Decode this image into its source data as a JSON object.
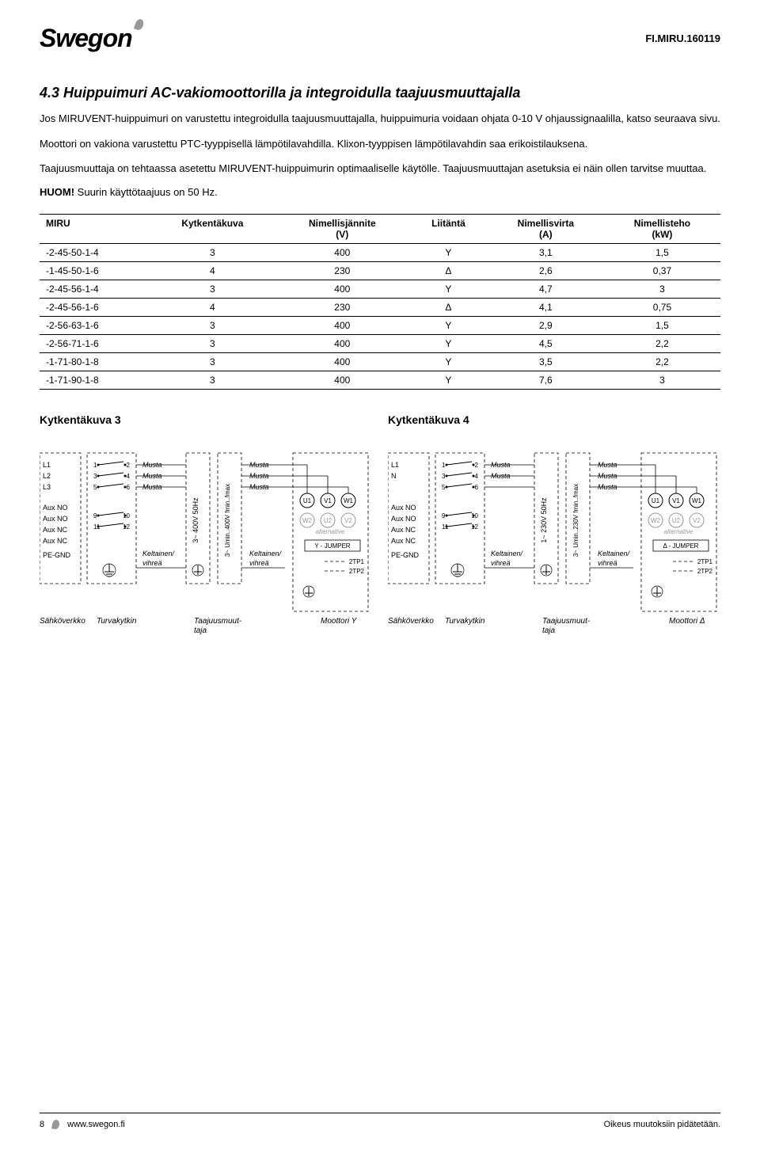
{
  "header": {
    "logo_text": "Swegon",
    "doc_id": "FI.MIRU.160119"
  },
  "section": {
    "title": "4.3 Huippuimuri AC-vakiomoottorilla ja integroidulla taajuusmuuttajalla",
    "p1": "Jos MIRUVENT-huippuimuri on varustettu integroidulla taajuusmuuttajalla, huippuimuria voidaan ohjata 0-10 V ohjaussignaalilla, katso seuraava sivu.",
    "p2": "Moottori on vakiona varustettu PTC-tyyppisellä lämpötilavahdilla. Klixon-tyyppisen lämpötilavahdin saa erikoistilauksena.",
    "p3": "Taajuusmuuttaja on tehtaassa asetettu MIRUVENT-huippuimurin optimaaliselle käytölle. Taajuusmuuttajan asetuksia ei näin ollen tarvitse muuttaa.",
    "huom_label": "HUOM!",
    "huom_text": "Suurin käyttötaajuus on 50 Hz."
  },
  "table": {
    "columns": [
      {
        "head": "MIRU",
        "sub": ""
      },
      {
        "head": "Kytkentäkuva",
        "sub": ""
      },
      {
        "head": "Nimellisjännite",
        "sub": "(V)"
      },
      {
        "head": "Liitäntä",
        "sub": ""
      },
      {
        "head": "Nimellisvirta",
        "sub": "(A)"
      },
      {
        "head": "Nimellisteho",
        "sub": "(kW)"
      }
    ],
    "rows": [
      [
        "-2-45-50-1-4",
        "3",
        "400",
        "Y",
        "3,1",
        "1,5"
      ],
      [
        "-1-45-50-1-6",
        "4",
        "230",
        "Δ",
        "2,6",
        "0,37"
      ],
      [
        "-2-45-56-1-4",
        "3",
        "400",
        "Y",
        "4,7",
        "3"
      ],
      [
        "-2-45-56-1-6",
        "4",
        "230",
        "Δ",
        "4,1",
        "0,75"
      ],
      [
        "-2-56-63-1-6",
        "3",
        "400",
        "Y",
        "2,9",
        "1,5"
      ],
      [
        "-2-56-71-1-6",
        "3",
        "400",
        "Y",
        "4,5",
        "2,2"
      ],
      [
        "-1-71-80-1-8",
        "3",
        "400",
        "Y",
        "3,5",
        "2,2"
      ],
      [
        "-1-71-90-1-8",
        "3",
        "400",
        "Y",
        "7,6",
        "3"
      ]
    ]
  },
  "diagrams": {
    "d3": {
      "title": "Kytkentäkuva 3",
      "mains_lines": [
        "L1",
        "L2",
        "L3",
        "Aux NO",
        "Aux NO",
        "Aux NC",
        "Aux NC",
        "PE-GND"
      ],
      "switch_terminals": [
        "1",
        "2",
        "3",
        "4",
        "5",
        "6",
        "9",
        "10",
        "11",
        "12"
      ],
      "colors_right": [
        "Musta",
        "Musta",
        "Musta"
      ],
      "color_bottom": "Keltainen/ vihreä",
      "freq_box": "3~ 400V 50Hz",
      "freq_out": "3~ Umin..400V fmin..fmax",
      "motor_terms_top": [
        "U1",
        "V1",
        "W1"
      ],
      "motor_terms_alt": [
        "W2",
        "U2",
        "V2"
      ],
      "motor_alt_text": "alternative",
      "jumper": "Y - JUMPER",
      "tp": [
        "2TP1",
        "2TP2"
      ],
      "captions": [
        "Sähköverkko",
        "Turvakytkin",
        "Taajuusmuuttaja",
        "Moottori Y"
      ]
    },
    "d4": {
      "title": "Kytkentäkuva 4",
      "mains_lines": [
        "L1",
        "N",
        "",
        "Aux NO",
        "Aux NO",
        "Aux NC",
        "Aux NC",
        "PE-GND"
      ],
      "switch_terminals": [
        "1",
        "2",
        "3",
        "4",
        "5",
        "6",
        "9",
        "10",
        "11",
        "12"
      ],
      "colors_right": [
        "Musta",
        "Musta",
        ""
      ],
      "color_bottom": "Keltainen/ vihreä",
      "freq_box": "1~ 230V 50Hz",
      "freq_out": "3~ Umin..230V fmin..fmax",
      "motor_terms_top": [
        "U1",
        "V1",
        "W1"
      ],
      "motor_terms_alt": [
        "W2",
        "U2",
        "V2"
      ],
      "motor_alt_text": "alternative",
      "jumper": "Δ - JUMPER",
      "tp": [
        "2TP1",
        "2TP2"
      ],
      "captions": [
        "Sähköverkko",
        "Turvakytkin",
        "Taajuusmuuttaja",
        "Moottori Δ"
      ]
    }
  },
  "footer": {
    "page": "8",
    "url": "www.swegon.fi",
    "rights": "Oikeus muutoksiin pidätetään."
  },
  "style": {
    "text_color": "#000000",
    "bg_color": "#ffffff",
    "alt_text_color": "#999999"
  }
}
